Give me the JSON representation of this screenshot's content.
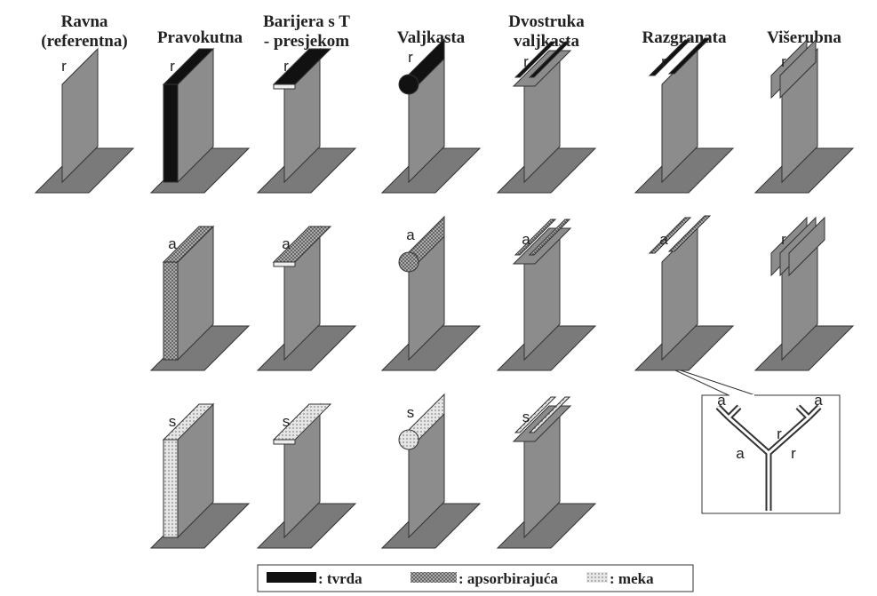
{
  "columns": [
    {
      "title": [
        "Ravna",
        "(referentna)"
      ],
      "shape": "flat",
      "cells": [
        "r"
      ]
    },
    {
      "title": [
        "Pravokutna"
      ],
      "shape": "rect",
      "cells": [
        "r",
        "a",
        "s"
      ]
    },
    {
      "title": [
        "Barijera s T",
        "- presjekom"
      ],
      "shape": "T",
      "cells": [
        "r",
        "a",
        "s"
      ]
    },
    {
      "title": [
        "Valjkasta"
      ],
      "shape": "cyl",
      "cells": [
        "r",
        "a",
        "s"
      ]
    },
    {
      "title": [
        "Dvostruka",
        "valjkasta"
      ],
      "shape": "double",
      "cells": [
        "r",
        "a",
        "s"
      ]
    },
    {
      "title": [
        "Razgranata"
      ],
      "shape": "branched",
      "cells": [
        "r",
        "a"
      ]
    },
    {
      "title": [
        "Višerubna"
      ],
      "shape": "multi",
      "cells": [
        "r",
        "r"
      ]
    }
  ],
  "inset": {
    "labels": [
      "a",
      "a",
      "r",
      "a",
      "r"
    ]
  },
  "legend": [
    ": tvrda",
    ": apsorbirajuća",
    ": meka"
  ]
}
